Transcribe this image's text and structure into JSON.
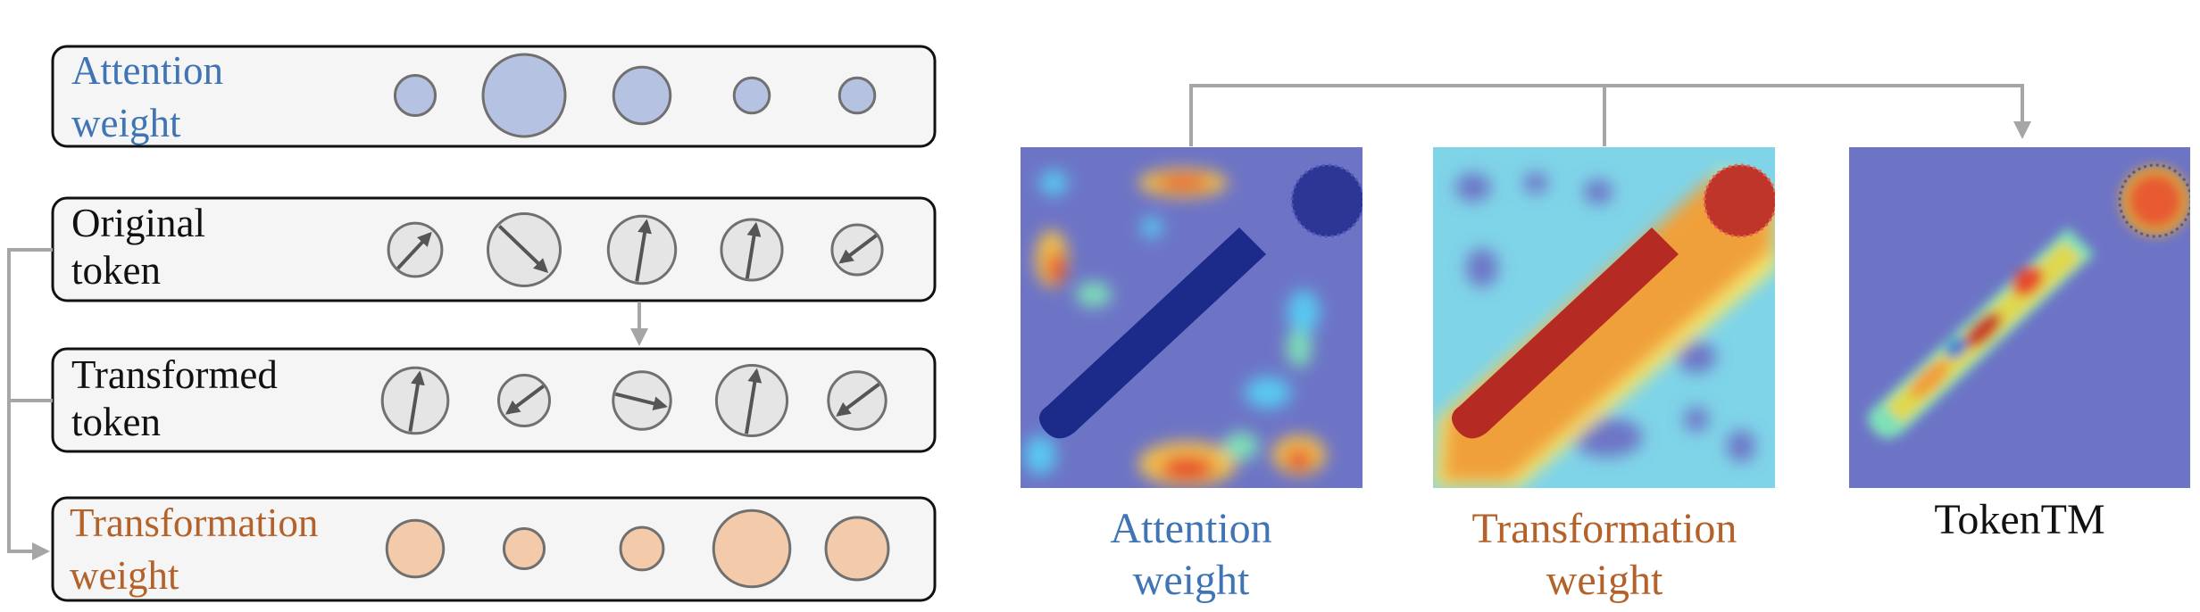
{
  "rows": {
    "attention": {
      "line1": "Attention",
      "line2": "weight",
      "color": "#3f74b5",
      "sizes": [
        0.49,
        1.0,
        0.69,
        0.43,
        0.43
      ]
    },
    "original": {
      "line1": "Original",
      "line2": "token",
      "color": "#111111",
      "sizes": [
        0.65,
        0.88,
        0.82,
        0.74,
        0.61
      ],
      "arrows": [
        "up-right",
        "down-right",
        "up",
        "up",
        "down-left"
      ]
    },
    "transformed": {
      "line1": "Transformed",
      "line2": "token",
      "color": "#111111",
      "sizes": [
        0.8,
        0.62,
        0.7,
        0.86,
        0.7
      ],
      "arrows": [
        "up",
        "down-left",
        "right",
        "up",
        "down-left"
      ]
    },
    "transformation": {
      "line1": "Transformation",
      "line2": "weight",
      "color": "#b4622a",
      "sizes": [
        0.69,
        0.49,
        0.52,
        0.93,
        0.76
      ]
    }
  },
  "images": {
    "attention_map": {
      "line1": "Attention",
      "line2": "weight",
      "color": "#3f74b5"
    },
    "transformation_map": {
      "line1": "Transformation",
      "line2": "weight",
      "color": "#b4622a"
    },
    "tokentm_map": {
      "label": "TokenTM",
      "color": "#111111"
    }
  },
  "colors": {
    "panel_fill": "#f5f5f5",
    "panel_border": "#111111",
    "blue_circle": "#b5c2e1",
    "orange_circle": "#f3cbaa",
    "token_circle": "#e5e5e5",
    "arrow": "#555555",
    "connector": "#a6a6a6"
  }
}
